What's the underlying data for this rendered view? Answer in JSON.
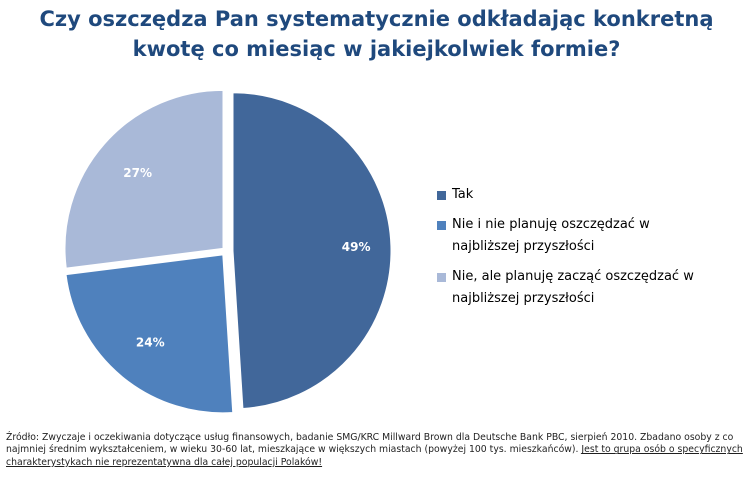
{
  "chart_data": {
    "type": "pie",
    "title_lines": [
      "Czy oszczędza Pan systematycznie odkładając konkretną",
      "kwotę co miesiąc w jakiejkolwiek formie?"
    ],
    "categories": [
      "Tak",
      "Nie i nie planuję oszczędzać w najbliższej przyszłości",
      "Nie, ale planuję zacząć oszczędzać w najbliższej przyszłości"
    ],
    "values": [
      49,
      24,
      27
    ],
    "value_labels": [
      "49%",
      "24%",
      "27%"
    ],
    "colors": [
      "#41679a",
      "#4f81bd",
      "#a9b9d8"
    ],
    "legend_lines": [
      [
        "Tak"
      ],
      [
        "Nie i nie planuję oszczędzać w",
        "najbliższej przyszłości"
      ],
      [
        "Nie, ale planuję zacząć oszczędzać w",
        "najbliższej przyszłości"
      ]
    ],
    "legend_position": "right"
  },
  "source_note": {
    "plain": "Źródło: Zwyczaje i oczekiwania dotyczące usług finansowych, badanie SMG/KRC Millward Brown dla Deutsche Bank PBC, sierpień 2010. Zbadano osoby z co najmniej średnim wykształceniem, w wieku 30-60 lat, mieszkające w większych miastach (powyżej 100 tys. mieszkańców). ",
    "underlined": "Jest to grupa osób o specyficznych charakterystykach nie reprezentatywna dla całej populacji Polaków!"
  }
}
